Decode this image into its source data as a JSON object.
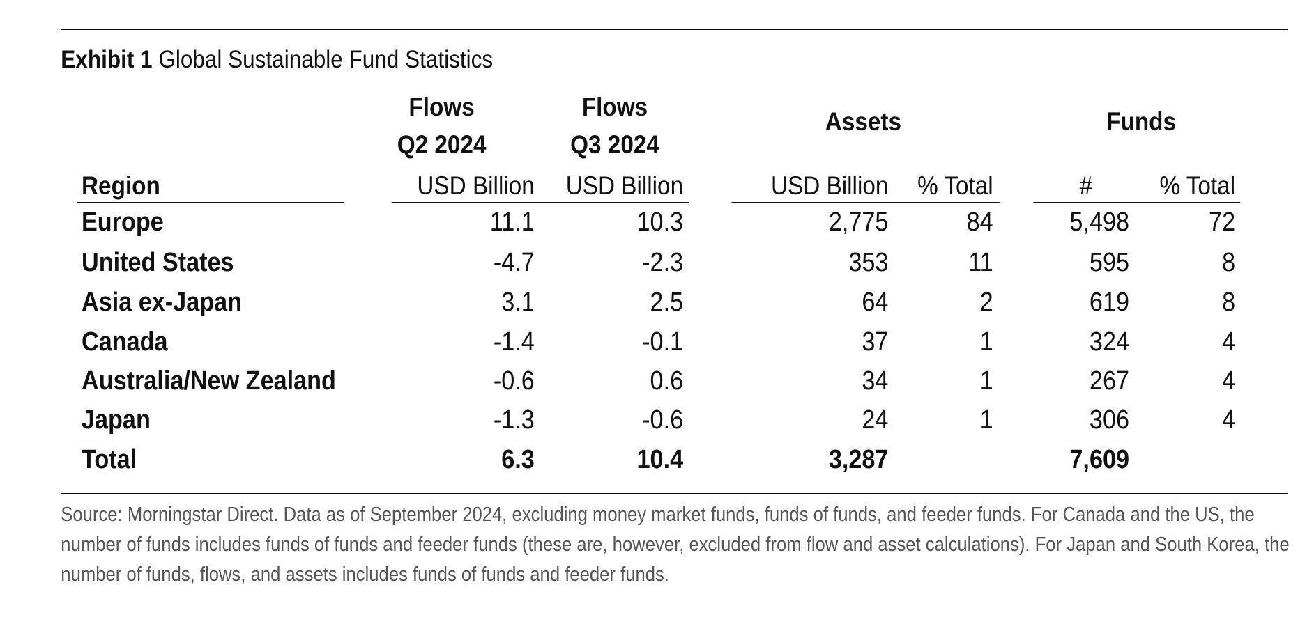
{
  "title": {
    "label": "Exhibit 1",
    "text": "Global Sustainable Fund Statistics"
  },
  "headers": {
    "flows_q2": [
      "Flows",
      "Q2 2024"
    ],
    "flows_q3": [
      "Flows",
      "Q3 2024"
    ],
    "assets": "Assets",
    "funds": "Funds"
  },
  "subheaders": [
    "Region",
    "USD Billion",
    "USD Billion",
    "USD Billion",
    "% Total",
    "#",
    "% Total"
  ],
  "rows": [
    {
      "region": "Europe",
      "cells": [
        "11.1",
        "10.3",
        "2,775",
        "84",
        "5,498",
        "72"
      ]
    },
    {
      "region": "United States",
      "cells": [
        "-4.7",
        "-2.3",
        "353",
        "11",
        "595",
        "8"
      ]
    },
    {
      "region": "Asia ex-Japan",
      "cells": [
        "3.1",
        "2.5",
        "64",
        "2",
        "619",
        "8"
      ]
    },
    {
      "region": "Canada",
      "cells": [
        "-1.4",
        "-0.1",
        "37",
        "1",
        "324",
        "4"
      ]
    },
    {
      "region": "Australia/New Zealand",
      "cells": [
        "-0.6",
        "0.6",
        "34",
        "1",
        "267",
        "4"
      ]
    },
    {
      "region": "Japan",
      "cells": [
        "-1.3",
        "-0.6",
        "24",
        "1",
        "306",
        "4"
      ]
    }
  ],
  "total": {
    "region": "Total",
    "cells": [
      "6.3",
      "10.4",
      "3,287",
      "",
      "7,609",
      ""
    ]
  },
  "footnote": "Source: Morningstar Direct. Data as of September 2024, excluding money market funds, funds of funds, and feeder funds. For Canada and the US, the number of funds includes funds of funds and feeder funds (these are, however, excluded from flow and asset calculations). For Japan and South Korea, the number of funds, flows, and assets includes funds of funds and feeder funds."
}
